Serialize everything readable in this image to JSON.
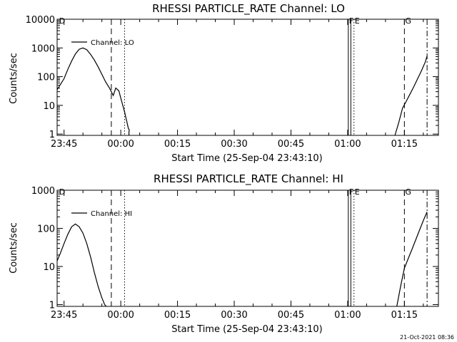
{
  "chart_data": [
    {
      "type": "line",
      "title": "RHESSI PARTICLE_RATE Channel: LO",
      "xlabel": "Start Time (25-Sep-04 23:43:10)",
      "ylabel": "Counts/sec",
      "yscale": "log",
      "xlim": [
        "23:43:10",
        "01:24:00"
      ],
      "ylim": [
        0.9,
        10000
      ],
      "xticks": [
        "23:45",
        "00:00",
        "00:15",
        "00:30",
        "00:45",
        "01:00",
        "01:15"
      ],
      "yticks": [
        "1",
        "10",
        "100",
        "1000",
        "10000"
      ],
      "grid": false,
      "legend_position": "top-left",
      "colors": {
        "series": "#000000"
      },
      "markers": [
        {
          "label": "D",
          "time": "23:43:30",
          "style": "dashed",
          "text_only": true
        },
        {
          "label": "",
          "time": "23:57:30",
          "style": "dashed"
        },
        {
          "label": "",
          "time": "00:01:00",
          "style": "dotted"
        },
        {
          "label": "F",
          "time": "01:00:10",
          "style": "solid"
        },
        {
          "label": "",
          "time": "01:00:50",
          "style": "solid"
        },
        {
          "label": "E",
          "time": "01:01:40",
          "style": "dotted"
        },
        {
          "label": "G",
          "time": "01:15:00",
          "style": "dashed"
        },
        {
          "label": "",
          "time": "01:21:00",
          "style": "dashdot"
        }
      ],
      "series": [
        {
          "name": "Channel: LO",
          "segments": [
            {
              "x": [
                "23:43:10",
                "23:45:00",
                "23:46:00",
                "23:47:00",
                "23:48:00",
                "23:49:00",
                "23:50:00",
                "23:51:00",
                "23:52:00",
                "23:53:00",
                "23:54:00",
                "23:55:00",
                "23:56:00",
                "23:57:00",
                "23:57:30",
                "23:58:00",
                "23:58:40",
                "23:59:30",
                "00:00:00",
                "00:01:00",
                "00:02:00",
                "00:02:20"
              ],
              "y": [
                35,
                85,
                180,
                350,
                620,
                900,
                1000,
                870,
                600,
                380,
                220,
                120,
                65,
                40,
                30,
                22,
                40,
                32,
                18,
                6,
                1.6,
                1.3
              ]
            },
            {
              "x": [
                "00:02:10",
                "00:02:10"
              ],
              "y": [
                1.3,
                0.9
              ]
            },
            {
              "x": [
                "01:12:30",
                "01:13:30",
                "01:14:30",
                "01:15:30",
                "01:16:30",
                "01:17:30",
                "01:18:30",
                "01:19:30",
                "01:20:30",
                "01:21:00"
              ],
              "y": [
                0.9,
                2.5,
                8,
                14,
                25,
                45,
                85,
                160,
                320,
                520
              ]
            }
          ]
        }
      ]
    },
    {
      "type": "line",
      "title": "RHESSI PARTICLE_RATE Channel: HI",
      "xlabel": "Start Time (25-Sep-04 23:43:10)",
      "ylabel": "Counts/sec",
      "yscale": "log",
      "xlim": [
        "23:43:10",
        "01:24:00"
      ],
      "ylim": [
        0.9,
        1000
      ],
      "xticks": [
        "23:45",
        "00:00",
        "00:15",
        "00:30",
        "00:45",
        "01:00",
        "01:15"
      ],
      "yticks": [
        "1",
        "10",
        "100",
        "1000"
      ],
      "grid": false,
      "legend_position": "top-left",
      "colors": {
        "series": "#000000"
      },
      "markers": [
        {
          "label": "D",
          "time": "23:43:30",
          "style": "dashed",
          "text_only": true
        },
        {
          "label": "",
          "time": "23:57:30",
          "style": "dashed"
        },
        {
          "label": "",
          "time": "00:01:00",
          "style": "dotted"
        },
        {
          "label": "F",
          "time": "01:00:10",
          "style": "solid"
        },
        {
          "label": "",
          "time": "01:00:50",
          "style": "solid"
        },
        {
          "label": "E",
          "time": "01:01:40",
          "style": "dotted"
        },
        {
          "label": "G",
          "time": "01:15:00",
          "style": "dashed"
        },
        {
          "label": "",
          "time": "01:21:00",
          "style": "dashdot"
        }
      ],
      "series": [
        {
          "name": "Channel: HI",
          "segments": [
            {
              "x": [
                "23:43:10",
                "23:44:00",
                "23:45:00",
                "23:46:00",
                "23:47:00",
                "23:48:00",
                "23:49:00",
                "23:50:00",
                "23:51:00",
                "23:52:00",
                "23:53:00",
                "23:54:00",
                "23:55:00",
                "23:55:45",
                "23:56:10"
              ],
              "y": [
                14,
                22,
                40,
                70,
                110,
                130,
                110,
                75,
                40,
                18,
                7,
                3,
                1.5,
                1.0,
                0.9
              ]
            },
            {
              "x": [
                "01:13:00",
                "01:14:00",
                "01:15:00",
                "01:16:00",
                "01:17:00",
                "01:18:00",
                "01:19:00",
                "01:20:00",
                "01:21:00"
              ],
              "y": [
                0.9,
                3,
                9,
                16,
                28,
                50,
                90,
                160,
                270
              ]
            }
          ]
        }
      ]
    }
  ],
  "footer": {
    "timestamp": "21-Oct-2021 08:36"
  }
}
